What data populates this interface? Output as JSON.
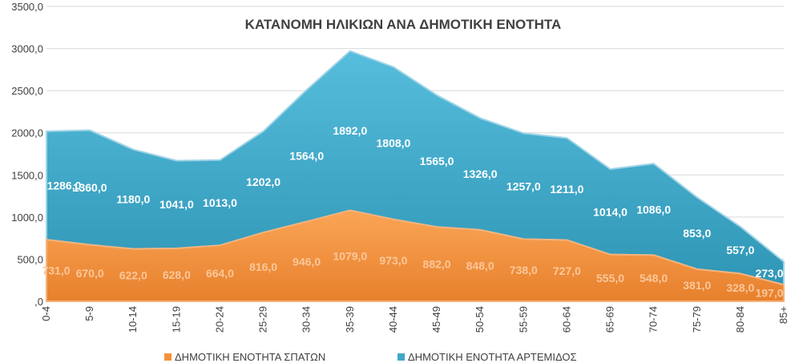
{
  "chart_data": {
    "type": "area",
    "stacked": true,
    "title": "ΚΑΤΑΝΟΜΗ ΗΛΙΚΙΩΝ ΑΝΑ ΔΗΜΟΤΙΚΗ ΕΝΟΤΗΤΑ",
    "categories": [
      "0-4",
      "5-9",
      "10-14",
      "15-19",
      "20-24",
      "25-29",
      "30-34",
      "35-39",
      "40-44",
      "45-49",
      "50-54",
      "55-59",
      "60-64",
      "65-69",
      "70-74",
      "75-79",
      "80-84",
      "85+"
    ],
    "series": [
      {
        "name": "ΔΗΜΟΤΙΚΗ ΕΝΟΤΗΤΑ ΣΠΑΤΩΝ",
        "color": "#F4913B",
        "values": [
          731,
          670,
          622,
          628,
          664,
          816,
          946,
          1079,
          973,
          882,
          848,
          738,
          727,
          555,
          548,
          381,
          328,
          197
        ],
        "labels": [
          "731,0",
          "670,0",
          "622,0",
          "628,0",
          "664,0",
          "816,0",
          "946,0",
          "1079,0",
          "973,0",
          "882,0",
          "848,0",
          "738,0",
          "727,0",
          "555,0",
          "548,0",
          "381,0",
          "328,0",
          "197,0"
        ]
      },
      {
        "name": "ΔΗΜΟΤΙΚΗ ΕΝΟΤΗΤΑ ΑΡΤΕΜΙΔΟΣ",
        "color": "#3FA7C8",
        "values": [
          1286,
          1360,
          1180,
          1041,
          1013,
          1202,
          1564,
          1892,
          1808,
          1565,
          1326,
          1257,
          1211,
          1014,
          1086,
          853,
          557,
          273
        ],
        "labels": [
          "1286,0",
          "1360,0",
          "1180,0",
          "1041,0",
          "1013,0",
          "1202,0",
          "1564,0",
          "1892,0",
          "1808,0",
          "1565,0",
          "1326,0",
          "1257,0",
          "1211,0",
          "1014,0",
          "1086,0",
          "853,0",
          "557,0",
          "273,0"
        ]
      }
    ],
    "ylim": [
      0,
      3500
    ],
    "yticks": [
      ",0",
      "500,0",
      "1000,0",
      "1500,0",
      "2000,0",
      "2500,0",
      "3000,0",
      "3500,0"
    ],
    "grid": true,
    "legend": "bottom"
  }
}
